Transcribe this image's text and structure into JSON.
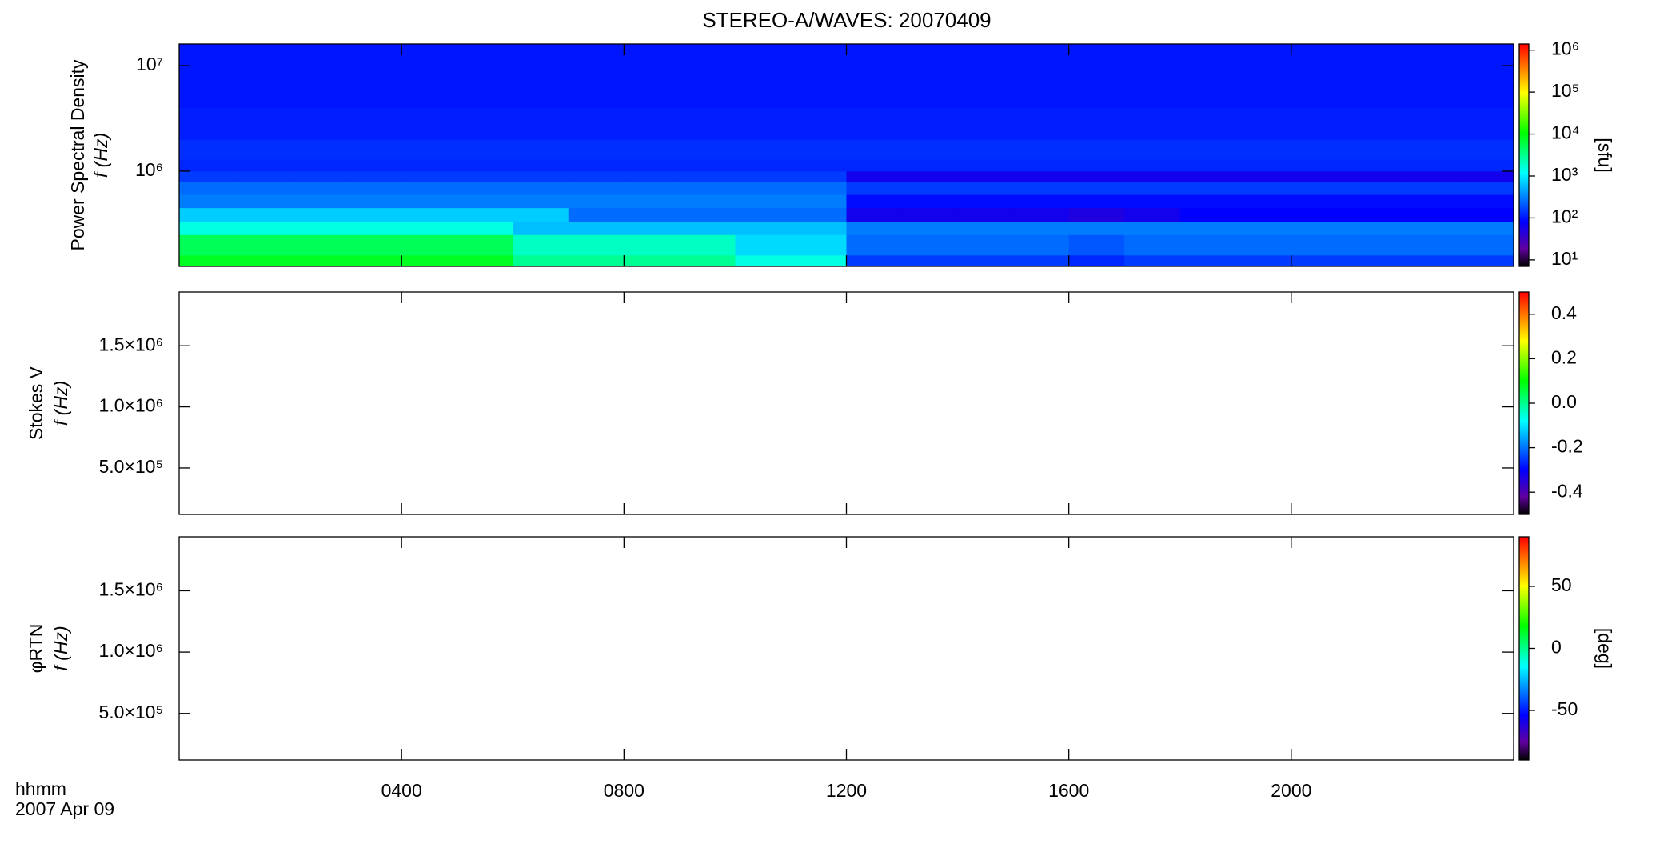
{
  "title": "STEREO-A/WAVES: 20070409",
  "time_label": "hhmm",
  "date_label": "2007 Apr 09",
  "chart_data": [
    {
      "type": "heatmap",
      "y_label": "Power Spectral Density",
      "y_unit_label": "f (Hz)",
      "colorbar_label": "[sfu]",
      "log_y": true,
      "log_color": true,
      "xbins": [
        0,
        1,
        2,
        3,
        4,
        5,
        6,
        7,
        8,
        9,
        10,
        11,
        12,
        13,
        14,
        15,
        16,
        17,
        18,
        19,
        20,
        21,
        22,
        23,
        24
      ],
      "ybins": [
        125000,
        160000,
        250000,
        330000,
        450000,
        600000,
        800000,
        1000000,
        1300000,
        2000000,
        4000000,
        16025000
      ],
      "values": [
        [
          8000,
          8000,
          8000,
          8000,
          8000,
          8000,
          3000,
          3000,
          3000,
          3000,
          1500,
          1500,
          150,
          150,
          150,
          150,
          120,
          150,
          150,
          150,
          150,
          150,
          150,
          150
        ],
        [
          5000,
          5000,
          5000,
          5000,
          5000,
          5000,
          2000,
          2000,
          2000,
          2000,
          800,
          800,
          250,
          250,
          250,
          250,
          200,
          250,
          250,
          250,
          250,
          250,
          250,
          250
        ],
        [
          1500,
          1500,
          1500,
          1500,
          1500,
          1500,
          600,
          600,
          600,
          600,
          600,
          600,
          300,
          300,
          300,
          300,
          300,
          300,
          300,
          300,
          300,
          300,
          300,
          300
        ],
        [
          700,
          700,
          700,
          700,
          700,
          700,
          700,
          250,
          250,
          250,
          250,
          250,
          60,
          60,
          60,
          60,
          50,
          60,
          80,
          80,
          80,
          80,
          80,
          80
        ],
        [
          300,
          300,
          300,
          300,
          300,
          300,
          300,
          300,
          300,
          300,
          300,
          300,
          90,
          90,
          90,
          90,
          90,
          90,
          90,
          90,
          90,
          90,
          90,
          90
        ],
        [
          250,
          250,
          250,
          250,
          250,
          250,
          250,
          250,
          250,
          250,
          250,
          250,
          150,
          150,
          150,
          150,
          150,
          150,
          150,
          150,
          150,
          150,
          150,
          150
        ],
        [
          150,
          150,
          150,
          150,
          150,
          150,
          150,
          150,
          150,
          150,
          150,
          150,
          60,
          60,
          60,
          60,
          60,
          60,
          60,
          60,
          60,
          60,
          60,
          60
        ],
        [
          120,
          120,
          120,
          120,
          120,
          120,
          120,
          120,
          120,
          120,
          120,
          120,
          120,
          120,
          120,
          120,
          120,
          120,
          120,
          120,
          120,
          120,
          120,
          120
        ],
        [
          130,
          130,
          130,
          130,
          130,
          130,
          130,
          130,
          130,
          130,
          130,
          130,
          130,
          130,
          130,
          130,
          130,
          130,
          130,
          130,
          130,
          130,
          130,
          130
        ],
        [
          110,
          110,
          110,
          110,
          110,
          110,
          110,
          110,
          110,
          110,
          110,
          110,
          110,
          110,
          110,
          110,
          110,
          110,
          110,
          110,
          110,
          110,
          110,
          110
        ],
        [
          100,
          100,
          100,
          100,
          100,
          100,
          100,
          100,
          100,
          100,
          100,
          100,
          100,
          100,
          100,
          100,
          100,
          100,
          100,
          100,
          100,
          100,
          100,
          100
        ]
      ],
      "ylim": [
        125000,
        16025000
      ],
      "yticks": [
        {
          "value": 1000000,
          "label": "10⁶"
        },
        {
          "value": 10000000,
          "label": "10⁷"
        }
      ],
      "clim": [
        7,
        1400000
      ],
      "cticks": [
        {
          "value": 10,
          "label": "10¹"
        },
        {
          "value": 100,
          "label": "10²"
        },
        {
          "value": 1000,
          "label": "10³"
        },
        {
          "value": 10000,
          "label": "10⁴"
        },
        {
          "value": 100000,
          "label": "10⁵"
        },
        {
          "value": 1000000,
          "label": "10⁶"
        }
      ]
    },
    {
      "type": "heatmap",
      "y_label": "Stokes V",
      "y_unit_label": "f (Hz)",
      "ylim": [
        120000,
        1940000
      ],
      "yticks": [
        {
          "value": 500000,
          "label": "5.0×10⁵"
        },
        {
          "value": 1000000,
          "label": "1.0×10⁶"
        },
        {
          "value": 1500000,
          "label": "1.5×10⁶"
        }
      ],
      "clim": [
        -0.5,
        0.5
      ],
      "cticks": [
        -0.4,
        -0.2,
        {
          "value": 0,
          "label": "0.0"
        },
        0.2,
        0.4
      ]
    },
    {
      "type": "heatmap",
      "y_label": "φRTN",
      "y_unit_label": "f (Hz)",
      "colorbar_label": "[deg]",
      "ylim": [
        120000,
        1940000
      ],
      "yticks": [
        {
          "value": 500000,
          "label": "5.0×10⁵"
        },
        {
          "value": 1000000,
          "label": "1.0×10⁶"
        },
        {
          "value": 1500000,
          "label": "1.5×10⁶"
        }
      ],
      "clim": [
        -90,
        90
      ],
      "cticks": [
        -50,
        0,
        50
      ],
      "xlim": [
        0,
        24
      ],
      "xticks": [
        {
          "value": 4,
          "label": "0400"
        },
        {
          "value": 8,
          "label": "0800"
        },
        {
          "value": 12,
          "label": "1200"
        },
        {
          "value": 16,
          "label": "1600"
        },
        {
          "value": 20,
          "label": "2000"
        }
      ]
    }
  ]
}
